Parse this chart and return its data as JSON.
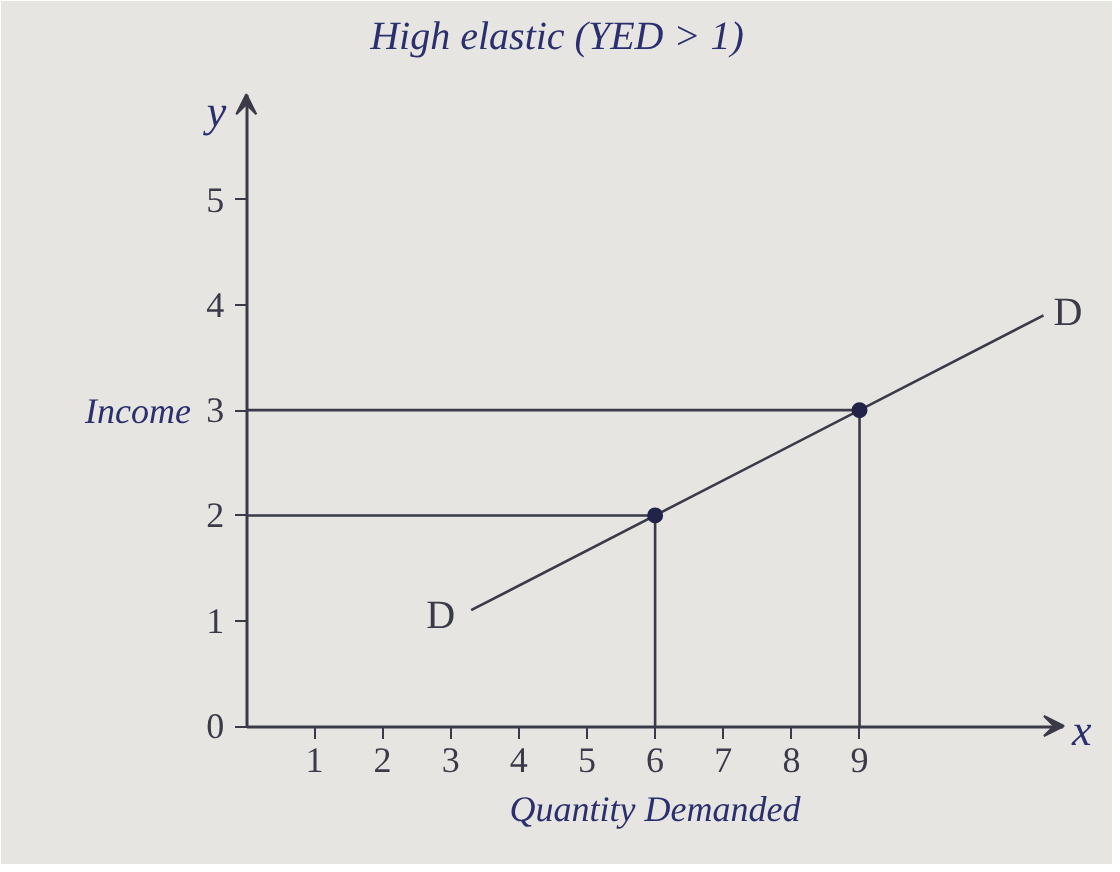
{
  "chart_data": {
    "type": "line",
    "title": "High elastic (YED > 1)",
    "xlabel": "Quantity Demanded",
    "ylabel": "Income",
    "xlim": [
      0,
      12
    ],
    "ylim": [
      0,
      6
    ],
    "xticks": [
      1,
      2,
      3,
      4,
      5,
      6,
      7,
      8,
      9
    ],
    "yticks": [
      0,
      1,
      2,
      3,
      4,
      5
    ],
    "grid": false,
    "series": [
      {
        "color": "#3a3a48",
        "x": [
          3.3,
          11.7
        ],
        "values": [
          1.1,
          3.9
        ]
      },
      {
        "color": "#3a3a48",
        "x": [
          0,
          6,
          6
        ],
        "values": [
          2,
          2,
          0
        ]
      },
      {
        "color": "#3a3a48",
        "x": [
          0,
          9,
          9
        ],
        "values": [
          3,
          3,
          0
        ]
      },
      {
        "type": "scatter",
        "color": "#23234a",
        "marker": "circle",
        "x": [
          6,
          9
        ],
        "values": [
          2,
          3
        ]
      }
    ],
    "annotations": [
      {
        "text": "D",
        "x": 3.3,
        "y": 1.1
      },
      {
        "text": "D",
        "x": 11.7,
        "y": 3.9
      },
      "y",
      "x"
    ]
  }
}
